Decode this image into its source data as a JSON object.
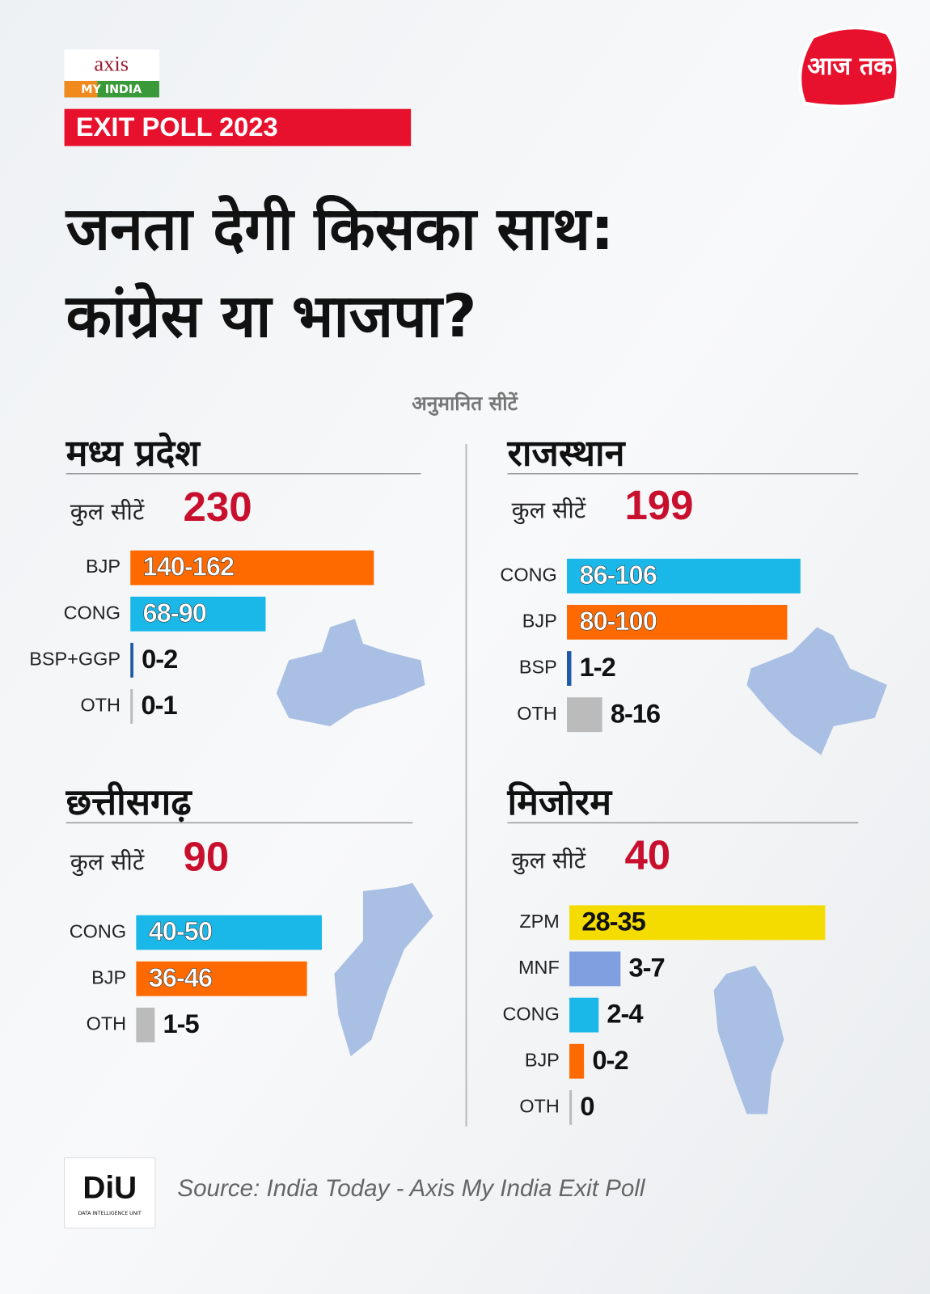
{
  "header": {
    "logo_top": "axis",
    "logo_bottom": "MY INDIA",
    "badge": "EXIT POLL 2023",
    "brand": "आज तक"
  },
  "title_line1": "जनता देगी किसका साथ:",
  "title_line2": "कांग्रेस या भाजपा?",
  "subtitle": "अनुमानित सीटें",
  "chart_data": [
    {
      "type": "bar",
      "title": "मध्य प्रदेश",
      "total_label": "कुल सीटें",
      "total": 230,
      "categories": [
        "BJP",
        "CONG",
        "BSP+GGP",
        "OTH"
      ],
      "low": [
        140,
        68,
        0,
        0
      ],
      "high": [
        162,
        90,
        2,
        1
      ],
      "value_labels": [
        "140-162",
        "68-90",
        "0-2",
        "0-1"
      ],
      "colors": [
        "#ff6a00",
        "#1ab8e8",
        "#1f5aa6",
        "#bbbbbb"
      ]
    },
    {
      "type": "bar",
      "title": "राजस्थान",
      "total_label": "कुल सीटें",
      "total": 199,
      "categories": [
        "CONG",
        "BJP",
        "BSP",
        "OTH"
      ],
      "low": [
        86,
        80,
        1,
        8
      ],
      "high": [
        106,
        100,
        2,
        16
      ],
      "value_labels": [
        "86-106",
        "80-100",
        "1-2",
        "8-16"
      ],
      "colors": [
        "#1ab8e8",
        "#ff6a00",
        "#1f5aa6",
        "#bbbbbb"
      ]
    },
    {
      "type": "bar",
      "title": "छत्तीसगढ़",
      "total_label": "कुल सीटें",
      "total": 90,
      "categories": [
        "CONG",
        "BJP",
        "OTH"
      ],
      "low": [
        40,
        36,
        1
      ],
      "high": [
        50,
        46,
        5
      ],
      "value_labels": [
        "40-50",
        "36-46",
        "1-5"
      ],
      "colors": [
        "#1ab8e8",
        "#ff6a00",
        "#bbbbbb"
      ]
    },
    {
      "type": "bar",
      "title": "मिजोरम",
      "total_label": "कुल सीटें",
      "total": 40,
      "categories": [
        "ZPM",
        "MNF",
        "CONG",
        "BJP",
        "OTH"
      ],
      "low": [
        28,
        3,
        2,
        0,
        0
      ],
      "high": [
        35,
        7,
        4,
        2,
        0
      ],
      "value_labels": [
        "28-35",
        "3-7",
        "2-4",
        "0-2",
        "0"
      ],
      "colors": [
        "#f5dc00",
        "#7f9fe0",
        "#1ab8e8",
        "#ff6a00",
        "#bbbbbb"
      ]
    }
  ],
  "footer": {
    "logo": "DiU",
    "logo_sub": "DATA INTELLIGENCE UNIT",
    "source": "Source: India Today - Axis My India Exit Poll"
  }
}
